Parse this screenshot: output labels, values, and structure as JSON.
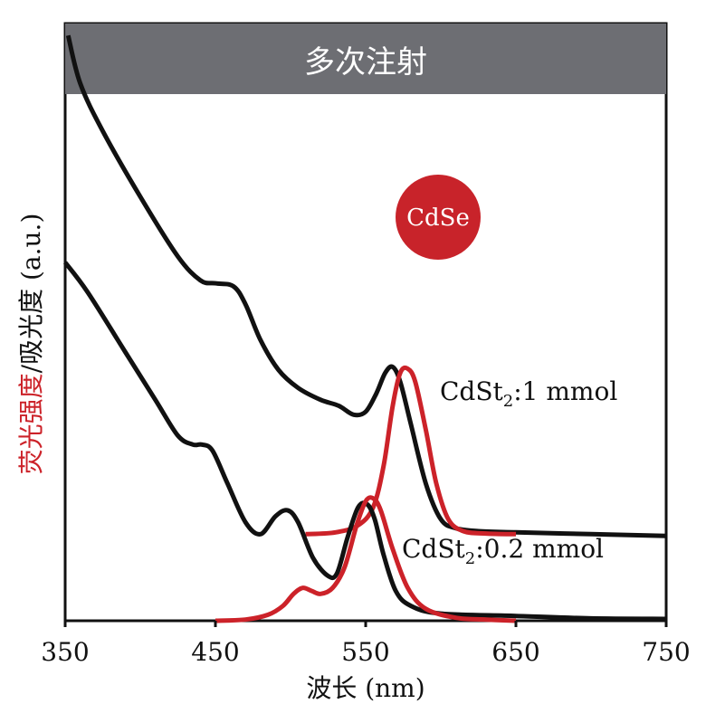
{
  "chart_data": {
    "type": "line",
    "banner": "多次注射",
    "badge": "CdSe",
    "ylabel_fluorescence": "荧光强度",
    "ylabel_rest": "/吸光度 (a.u.)",
    "xlabel": "波长 (nm)",
    "xlim": [
      350,
      750
    ],
    "xticks": [
      350,
      450,
      550,
      650,
      750
    ],
    "ylim": [
      0,
      1
    ],
    "colors": {
      "absorbance": "#111111",
      "fluorescence": "#cc2229",
      "banner": "#6d6e73",
      "badge": "#c8232a"
    },
    "series": [
      {
        "label": "CdSt₂:1 mmol",
        "label_main": "CdSt",
        "label_sub": "2",
        "label_tail": ":1 mmol",
        "absorbance": {
          "x": [
            352,
            360,
            375,
            400,
            425,
            440,
            450,
            462,
            470,
            480,
            492,
            505,
            520,
            532,
            542,
            550,
            557,
            563,
            568,
            573,
            580,
            590,
            600,
            610,
            625,
            650,
            700,
            750
          ],
          "y": [
            0.98,
            0.9,
            0.82,
            0.71,
            0.61,
            0.57,
            0.565,
            0.56,
            0.53,
            0.47,
            0.42,
            0.39,
            0.37,
            0.36,
            0.345,
            0.35,
            0.38,
            0.415,
            0.425,
            0.4,
            0.33,
            0.23,
            0.17,
            0.155,
            0.15,
            0.148,
            0.145,
            0.142
          ]
        },
        "fluorescence": {
          "x": [
            510,
            530,
            545,
            555,
            562,
            568,
            573,
            578,
            583,
            590,
            597,
            605,
            615,
            630,
            650
          ],
          "y": [
            0.145,
            0.148,
            0.16,
            0.19,
            0.26,
            0.36,
            0.415,
            0.422,
            0.4,
            0.32,
            0.23,
            0.17,
            0.15,
            0.146,
            0.145
          ]
        }
      },
      {
        "label": "CdSt₂:0.2 mmol",
        "label_main": "CdSt",
        "label_sub": "2",
        "label_tail": ":0.2 mmol",
        "absorbance": {
          "x": [
            350,
            365,
            390,
            410,
            425,
            435,
            441,
            448,
            458,
            470,
            480,
            490,
            498,
            505,
            515,
            525,
            531,
            538,
            545,
            551,
            556,
            562,
            570,
            580,
            600,
            650,
            700,
            750
          ],
          "y": [
            0.6,
            0.55,
            0.45,
            0.37,
            0.31,
            0.295,
            0.295,
            0.285,
            0.23,
            0.165,
            0.145,
            0.175,
            0.185,
            0.165,
            0.105,
            0.075,
            0.08,
            0.14,
            0.19,
            0.195,
            0.17,
            0.11,
            0.05,
            0.025,
            0.012,
            0.008,
            0.004,
            0.003
          ]
        },
        "fluorescence": {
          "x": [
            450,
            470,
            485,
            495,
            502,
            508,
            514,
            520,
            528,
            536,
            544,
            550,
            555,
            560,
            568,
            578,
            590,
            610,
            630,
            650
          ],
          "y": [
            0.0,
            0.002,
            0.01,
            0.025,
            0.045,
            0.055,
            0.05,
            0.045,
            0.055,
            0.09,
            0.16,
            0.2,
            0.205,
            0.185,
            0.12,
            0.055,
            0.02,
            0.005,
            0.002,
            0.0
          ]
        }
      }
    ]
  }
}
